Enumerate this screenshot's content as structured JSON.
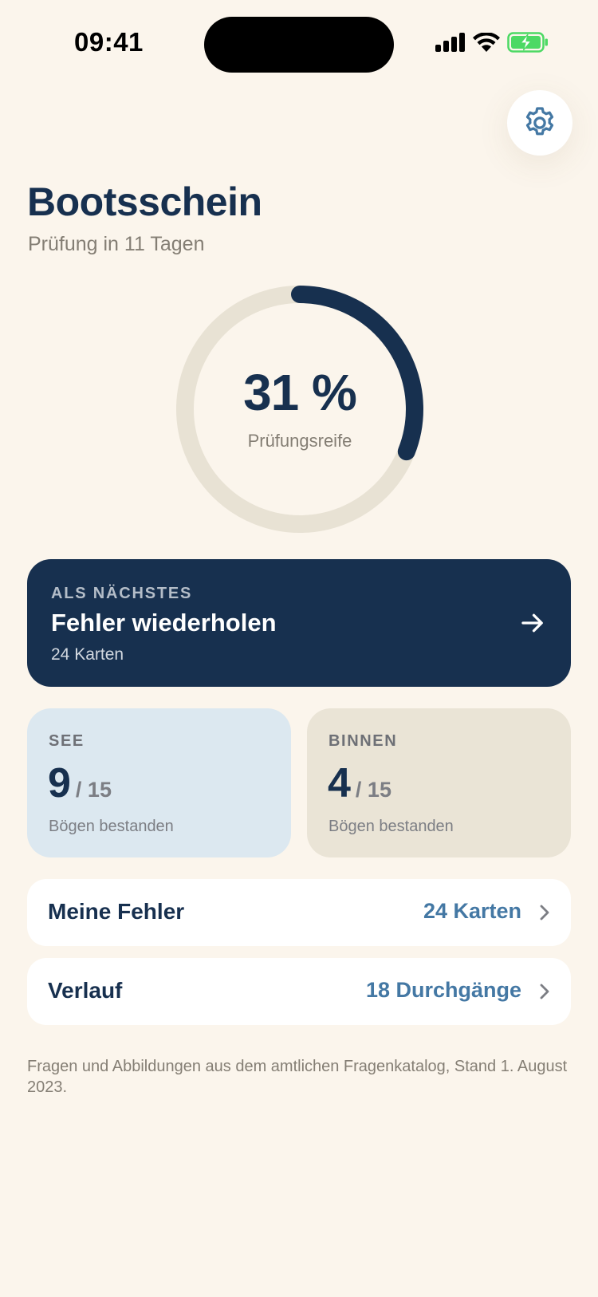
{
  "status_bar": {
    "time": "09:41"
  },
  "header": {
    "title": "Bootsschein",
    "subtitle": "Prüfung in 11 Tagen",
    "settings_icon": "gear-icon"
  },
  "readiness": {
    "percent_label": "31 %",
    "progress_fraction": 0.31,
    "caption": "Prüfungsreife"
  },
  "next_card": {
    "eyebrow": "ALS NÄCHSTES",
    "title": "Fehler wiederholen",
    "subtitle": "24 Karten",
    "icon": "arrow-right-icon"
  },
  "stats": {
    "see": {
      "label": "SEE",
      "value": "9",
      "total": "/ 15",
      "caption": "Bögen bestanden"
    },
    "binnen": {
      "label": "BINNEN",
      "value": "4",
      "total": "/ 15",
      "caption": "Bögen bestanden"
    }
  },
  "rows": {
    "errors": {
      "label": "Meine Fehler",
      "value": "24 Karten"
    },
    "history": {
      "label": "Verlauf",
      "value": "18 Durchgänge"
    }
  },
  "footnote": "Fragen und Abbildungen aus dem amtlichen Fragenkatalog, Stand 1. August 2023.",
  "colors": {
    "background": "#FBF5EC",
    "primary": "#17304F",
    "accent": "#4478A4",
    "ring_track": "#E8E2D4",
    "see_card": "#DCE8F0",
    "binnen_card": "#EAE4D6",
    "battery_green": "#4CD964"
  }
}
